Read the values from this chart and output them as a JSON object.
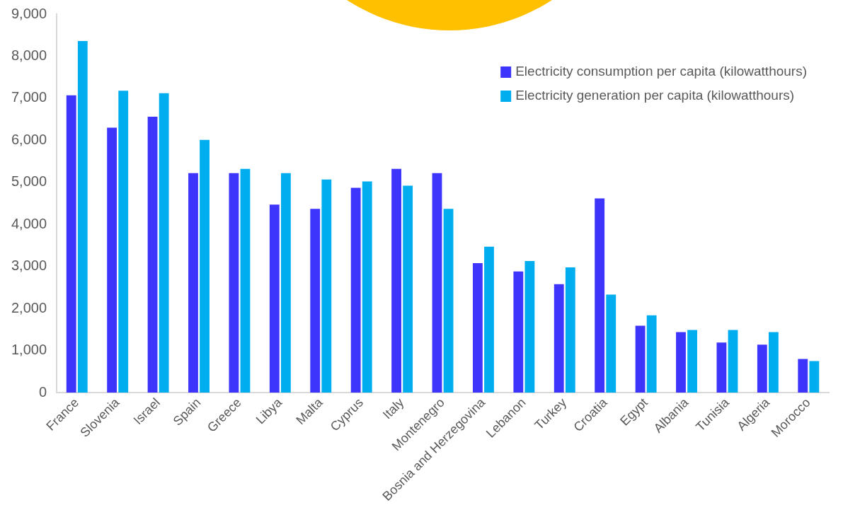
{
  "chart_data": {
    "type": "bar",
    "categories": [
      "France",
      "Slovenia",
      "Israel",
      "Spain",
      "Greece",
      "Libya",
      "Malta",
      "Cyprus",
      "Italy",
      "Montenegro",
      "Bosnia and Herzegovina",
      "Lebanon",
      "Turkey",
      "Croatia",
      "Egypt",
      "Albania",
      "Tunisia",
      "Algeria",
      "Morocco"
    ],
    "series": [
      {
        "name": "Electricity consumption per capita (kilowatthours)",
        "color": "#3d35fb",
        "values": [
          7070,
          6300,
          6560,
          5220,
          5220,
          4470,
          4370,
          4870,
          5320,
          5220,
          3080,
          2880,
          2580,
          4620,
          1590,
          1440,
          1190,
          1140,
          800
        ]
      },
      {
        "name": "Electricity generation per capita (kilowatthours)",
        "color": "#00aeef",
        "values": [
          8360,
          7180,
          7120,
          6010,
          5320,
          5220,
          5070,
          5020,
          4920,
          4370,
          3470,
          3130,
          2980,
          2330,
          1840,
          1490,
          1490,
          1440,
          750
        ]
      }
    ],
    "ylim": [
      0,
      9000
    ],
    "yticks": [
      {
        "value": 0,
        "label": "0"
      },
      {
        "value": 1000,
        "label": "1,000"
      },
      {
        "value": 2000,
        "label": "2,000"
      },
      {
        "value": 3000,
        "label": "3,000"
      },
      {
        "value": 4000,
        "label": "4,000"
      },
      {
        "value": 5000,
        "label": "5,000"
      },
      {
        "value": 6000,
        "label": "6,000"
      },
      {
        "value": 7000,
        "label": "7,000"
      },
      {
        "value": 8000,
        "label": "8,000"
      },
      {
        "value": 9000,
        "label": "9,000"
      }
    ],
    "grid": false,
    "legend": "top right"
  }
}
